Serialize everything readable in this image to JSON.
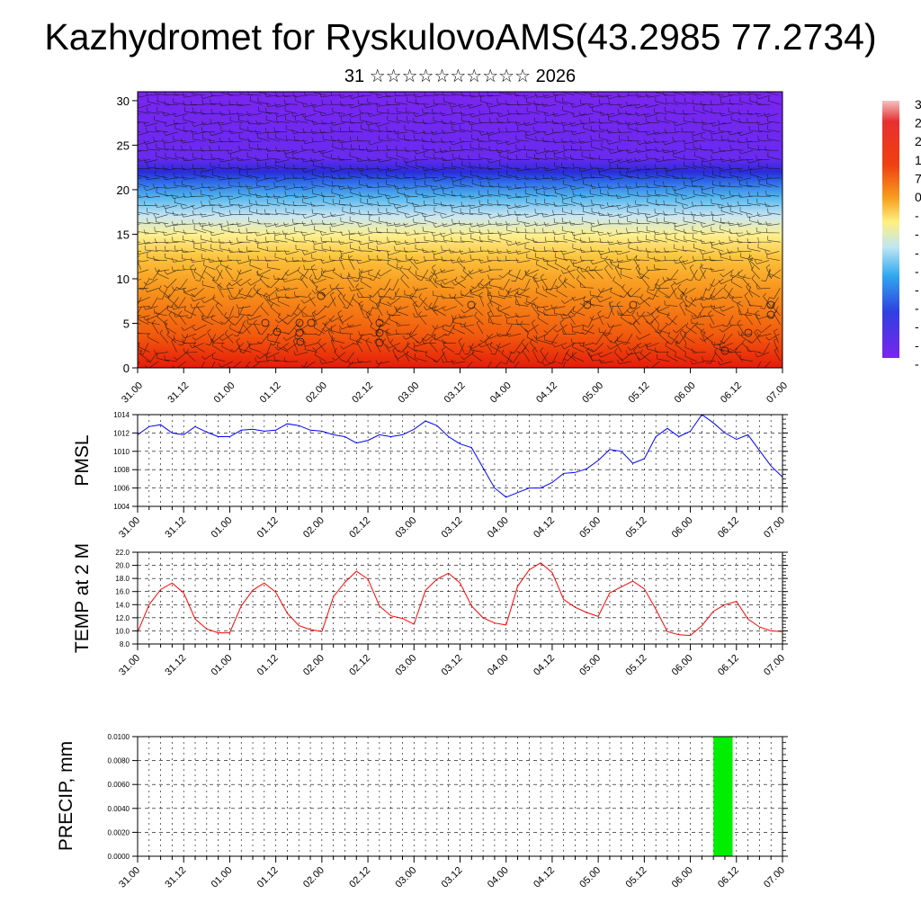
{
  "title": "Kazhydromet for RyskulovoAMS(43.2985 77.2734)",
  "subtitle": "31 ☆☆☆☆☆☆☆☆☆☆ 2026",
  "colors": {
    "pmsl_line": "#0000ff",
    "temp_line": "#ff0000",
    "precip_bar": "#00ee00",
    "grid": "#000000"
  },
  "chart_data": [
    {
      "id": "cross-section",
      "type": "heatmap",
      "title": "",
      "xlabel": "",
      "ylabel": "",
      "x_tick_labels": [
        "31.00",
        "31.12",
        "01.00",
        "01.12",
        "02.00",
        "02.12",
        "03.00",
        "03.12",
        "04.00",
        "04.12",
        "05.00",
        "05.12",
        "06.00",
        "06.12",
        "07.00"
      ],
      "y_ticks": [
        0,
        5,
        10,
        15,
        20,
        25,
        30
      ],
      "ylim": [
        0,
        31
      ],
      "colorbar_visible_labels": [
        "3",
        "2",
        "2",
        "1",
        "7",
        "0",
        "-",
        "-",
        "-",
        "-",
        "-",
        "-",
        "-",
        "-",
        "-"
      ],
      "wind_barbs": "dense field of wind barbs overlaid"
    },
    {
      "id": "pmsl",
      "type": "line",
      "ylabel": "PMSL",
      "ylim": [
        1004,
        1014
      ],
      "y_ticks": [
        1004,
        1006,
        1008,
        1010,
        1012,
        1014
      ],
      "x_tick_labels": [
        "31.00",
        "31.12",
        "01.00",
        "01.12",
        "02.00",
        "02.12",
        "03.00",
        "03.12",
        "04.00",
        "04.12",
        "05.00",
        "05.12",
        "06.00",
        "06.12",
        "07.00"
      ],
      "x": [
        0,
        3,
        6,
        9,
        12,
        15,
        18,
        21,
        24,
        27,
        30,
        33,
        36,
        39,
        42,
        45,
        48,
        51,
        54,
        57,
        60,
        63,
        66,
        69,
        72,
        75,
        78,
        81,
        84,
        87,
        90,
        93,
        96,
        99,
        102,
        105,
        108,
        111,
        114,
        117,
        120,
        123,
        126,
        129,
        132,
        135,
        138,
        141,
        144,
        147,
        150,
        153,
        156,
        159,
        162,
        165,
        168
      ],
      "values": [
        1011.8,
        1012.7,
        1012.9,
        1012.0,
        1011.8,
        1012.7,
        1012.1,
        1011.6,
        1011.6,
        1012.3,
        1012.4,
        1012.2,
        1012.3,
        1013.0,
        1012.8,
        1012.3,
        1012.2,
        1011.8,
        1011.6,
        1010.9,
        1011.2,
        1011.8,
        1011.6,
        1011.8,
        1012.4,
        1013.3,
        1012.8,
        1011.6,
        1010.8,
        1010.4,
        1008.2,
        1006.0,
        1005.0,
        1005.5,
        1006.0,
        1006.0,
        1006.6,
        1007.6,
        1007.7,
        1008.1,
        1009.0,
        1010.2,
        1010.0,
        1008.7,
        1009.2,
        1011.6,
        1012.5,
        1011.6,
        1012.2,
        1014.0,
        1013.1,
        1012.0,
        1011.3,
        1011.8,
        1010.1,
        1008.4,
        1007.2
      ]
    },
    {
      "id": "temp",
      "type": "line",
      "ylabel": "TEMP at 2 M",
      "ylim": [
        8.0,
        22.0
      ],
      "y_tick_labels": [
        "8.0",
        "10.0",
        "12.0",
        "14.0",
        "16.0",
        "18.0",
        "20.0",
        "22.0"
      ],
      "y_ticks": [
        8,
        10,
        12,
        14,
        16,
        18,
        20,
        22
      ],
      "x_tick_labels": [
        "31.00",
        "31.12",
        "01.00",
        "01.12",
        "02.00",
        "02.12",
        "03.00",
        "03.12",
        "04.00",
        "04.12",
        "05.00",
        "05.12",
        "06.00",
        "06.12",
        "07.00"
      ],
      "x": [
        0,
        3,
        6,
        9,
        12,
        15,
        18,
        21,
        24,
        27,
        30,
        33,
        36,
        39,
        42,
        45,
        48,
        51,
        54,
        57,
        60,
        63,
        66,
        69,
        72,
        75,
        78,
        81,
        84,
        87,
        90,
        93,
        96,
        99,
        102,
        105,
        108,
        111,
        114,
        117,
        120,
        123,
        126,
        129,
        132,
        135,
        138,
        141,
        144,
        147,
        150,
        153,
        156,
        159,
        162,
        165,
        168
      ],
      "values": [
        9.8,
        14.0,
        16.3,
        17.3,
        15.8,
        11.8,
        10.3,
        9.7,
        9.7,
        13.8,
        16.2,
        17.3,
        15.9,
        12.7,
        10.8,
        10.2,
        9.9,
        15.2,
        17.4,
        19.1,
        17.9,
        13.8,
        12.3,
        11.9,
        11.0,
        16.2,
        17.9,
        18.8,
        17.3,
        13.8,
        12.0,
        11.2,
        10.9,
        16.8,
        19.3,
        20.4,
        18.9,
        14.8,
        13.6,
        12.8,
        12.2,
        15.8,
        16.7,
        17.6,
        16.4,
        13.3,
        9.9,
        9.4,
        9.3,
        10.8,
        13.0,
        14.0,
        14.5,
        11.8,
        10.6,
        10.0,
        9.9
      ]
    },
    {
      "id": "precip",
      "type": "bar",
      "ylabel": "PRECIP, mm",
      "ylim": [
        0,
        0.01
      ],
      "y_tick_labels": [
        "0.0000",
        "0.0020",
        "0.0040",
        "0.0060",
        "0.0080",
        "0.0100"
      ],
      "y_ticks": [
        0,
        0.002,
        0.004,
        0.006,
        0.008,
        0.01
      ],
      "x_tick_labels": [
        "31.00",
        "31.12",
        "01.00",
        "01.12",
        "02.00",
        "02.12",
        "03.00",
        "03.12",
        "04.00",
        "04.12",
        "05.00",
        "05.12",
        "06.00",
        "06.12",
        "07.00"
      ],
      "bars": [
        {
          "start": 150,
          "end": 155,
          "value": 0.01
        }
      ]
    }
  ]
}
